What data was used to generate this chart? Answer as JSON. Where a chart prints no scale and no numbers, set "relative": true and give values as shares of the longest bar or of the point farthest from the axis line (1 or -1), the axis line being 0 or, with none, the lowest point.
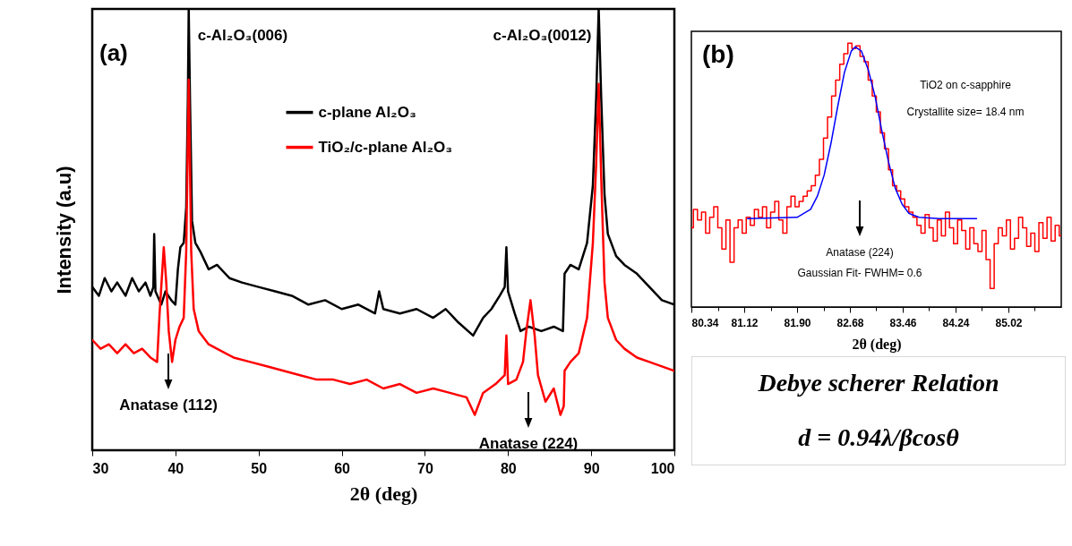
{
  "chart_data": [
    {
      "type": "line",
      "relative": true,
      "xlabel": "2θ (deg)",
      "ylabel": "Intensity (a.u)",
      "xlim": [
        30,
        100
      ],
      "xticks": [
        30,
        40,
        50,
        60,
        70,
        80,
        90,
        100
      ],
      "legend": "top",
      "line_style": "solid",
      "annotations": [
        "(a)",
        {
          "text": "c-Al₂O₃(006)",
          "x": 41.6,
          "y": 0.94
        },
        {
          "text": "c-Al₂O₃(0012)",
          "x": 90.9,
          "y": 0.94
        },
        "Anatase (112)",
        "Anatase (224)"
      ],
      "series": [
        {
          "name": "c-plane Al₂O₃",
          "color": "#000000",
          "x": [
            30,
            30.8,
            31.5,
            32.3,
            33,
            34,
            34.8,
            35.6,
            36.4,
            37,
            37.35,
            37.45,
            37.6,
            38.3,
            38.8,
            39.5,
            40,
            40.3,
            40.6,
            41,
            41.3,
            41.5,
            41.6,
            41.75,
            42,
            42.4,
            43,
            44,
            45,
            46.5,
            48,
            50,
            52,
            54,
            56,
            58,
            60,
            62,
            64,
            64.5,
            65,
            67,
            69,
            71,
            72.5,
            74,
            75.8,
            77,
            78,
            79,
            79.6,
            79.8,
            80,
            80.8,
            81.5,
            82.5,
            84,
            85.5,
            86.6,
            86.8,
            87.5,
            88.5,
            89.5,
            90.2,
            90.6,
            90.9,
            91.2,
            91.6,
            92,
            93,
            94,
            95.5,
            97,
            98.5,
            100
          ],
          "values": [
            0.37,
            0.35,
            0.39,
            0.36,
            0.38,
            0.35,
            0.39,
            0.36,
            0.38,
            0.35,
            0.37,
            0.49,
            0.36,
            0.33,
            0.36,
            0.34,
            0.33,
            0.41,
            0.46,
            0.47,
            0.55,
            0.8,
            1,
            0.8,
            0.52,
            0.47,
            0.45,
            0.41,
            0.42,
            0.39,
            0.38,
            0.37,
            0.36,
            0.35,
            0.33,
            0.34,
            0.32,
            0.33,
            0.31,
            0.36,
            0.32,
            0.31,
            0.32,
            0.3,
            0.32,
            0.29,
            0.26,
            0.3,
            0.32,
            0.35,
            0.37,
            0.46,
            0.36,
            0.31,
            0.27,
            0.28,
            0.27,
            0.28,
            0.27,
            0.4,
            0.42,
            0.41,
            0.47,
            0.6,
            0.8,
            1,
            0.8,
            0.58,
            0.49,
            0.44,
            0.42,
            0.4,
            0.37,
            0.34,
            0.33
          ]
        },
        {
          "name": "TiO₂/c-plane Al₂O₃",
          "color": "#ff0000",
          "x": [
            30,
            31,
            32,
            33,
            34,
            35,
            36,
            37,
            37.8,
            38.1,
            38.3,
            38.6,
            38.9,
            39.2,
            39.6,
            40,
            40.5,
            41,
            41.3,
            41.6,
            41.9,
            42.2,
            42.8,
            44,
            45,
            47,
            49,
            51,
            53,
            55,
            57,
            59,
            61,
            63,
            65,
            67,
            69,
            71,
            73,
            75,
            76,
            77,
            78.5,
            79.6,
            79.8,
            80,
            81,
            81.8,
            82.2,
            82.7,
            83.2,
            83.6,
            84.5,
            85.5,
            86.3,
            86.7,
            86.8,
            87.5,
            88.5,
            89.5,
            90.2,
            90.6,
            90.9,
            91.2,
            91.6,
            92,
            93,
            94,
            95.5,
            97,
            98.5,
            100
          ],
          "values": [
            0.25,
            0.23,
            0.24,
            0.22,
            0.24,
            0.22,
            0.23,
            0.21,
            0.2,
            0.31,
            0.37,
            0.46,
            0.38,
            0.27,
            0.2,
            0.25,
            0.28,
            0.3,
            0.45,
            0.84,
            0.45,
            0.32,
            0.27,
            0.24,
            0.23,
            0.21,
            0.2,
            0.19,
            0.18,
            0.17,
            0.16,
            0.16,
            0.15,
            0.16,
            0.14,
            0.15,
            0.13,
            0.14,
            0.13,
            0.12,
            0.08,
            0.13,
            0.15,
            0.17,
            0.26,
            0.15,
            0.16,
            0.2,
            0.27,
            0.34,
            0.26,
            0.17,
            0.11,
            0.14,
            0.08,
            0.1,
            0.18,
            0.2,
            0.22,
            0.3,
            0.47,
            0.65,
            0.83,
            0.62,
            0.38,
            0.3,
            0.25,
            0.23,
            0.21,
            0.2,
            0.19,
            0.18
          ]
        }
      ]
    },
    {
      "type": "line",
      "relative": true,
      "xlabel": "2θ (deg)",
      "xlim": [
        80.34,
        85.8
      ],
      "xticks": [
        80.34,
        {
          "value": 80.73,
          "label": null
        },
        81.12,
        {
          "value": 81.51,
          "label": null
        },
        {
          "value": 81.9,
          "label": "81.90"
        },
        {
          "value": 82.29,
          "label": null
        },
        82.68,
        {
          "value": 83.07,
          "label": null
        },
        83.46,
        {
          "value": 83.85,
          "label": null
        },
        84.24,
        {
          "value": 84.63,
          "label": null
        },
        85.02,
        {
          "value": 85.41,
          "label": null
        }
      ],
      "annotations": [
        "(b)",
        "TiO2 on c-sapphire",
        "Crystallite size= 18.4 nm",
        "Gaussian Fit- FWHM= 0.6",
        "Anatase (224)"
      ],
      "series": [
        {
          "type": "step",
          "color": "#ff0000",
          "x": [
            80.34,
            80.4,
            80.46,
            80.52,
            80.58,
            80.64,
            80.7,
            80.76,
            80.82,
            80.88,
            80.94,
            81,
            81.06,
            81.12,
            81.18,
            81.24,
            81.3,
            81.36,
            81.42,
            81.48,
            81.54,
            81.6,
            81.66,
            81.72,
            81.78,
            81.84,
            81.9,
            81.96,
            82.02,
            82.08,
            82.14,
            82.2,
            82.26,
            82.32,
            82.38,
            82.44,
            82.5,
            82.56,
            82.62,
            82.68,
            82.74,
            82.8,
            82.86,
            82.92,
            82.98,
            83.04,
            83.1,
            83.16,
            83.22,
            83.28,
            83.34,
            83.4,
            83.46,
            83.52,
            83.58,
            83.64,
            83.7,
            83.76,
            83.82,
            83.88,
            83.94,
            84,
            84.06,
            84.12,
            84.18,
            84.24,
            84.3,
            84.36,
            84.42,
            84.48,
            84.54,
            84.6,
            84.66,
            84.72,
            84.78,
            84.84,
            84.9,
            84.96,
            85.02,
            85.08,
            85.14,
            85.2,
            85.26,
            85.32,
            85.38,
            85.44,
            85.5,
            85.56,
            85.62,
            85.68,
            85.74,
            85.8
          ],
          "values": [
            0.3,
            0.37,
            0.33,
            0.36,
            0.28,
            0.34,
            0.38,
            0.3,
            0.22,
            0.33,
            0.17,
            0.3,
            0.33,
            0.28,
            0.34,
            0.31,
            0.37,
            0.34,
            0.38,
            0.3,
            0.36,
            0.4,
            0.33,
            0.28,
            0.38,
            0.42,
            0.38,
            0.4,
            0.42,
            0.44,
            0.46,
            0.5,
            0.56,
            0.64,
            0.72,
            0.8,
            0.86,
            0.92,
            0.96,
            1,
            0.98,
            0.99,
            0.95,
            0.93,
            0.86,
            0.8,
            0.74,
            0.66,
            0.6,
            0.52,
            0.46,
            0.44,
            0.41,
            0.38,
            0.36,
            0.34,
            0.31,
            0.28,
            0.35,
            0.3,
            0.25,
            0.33,
            0.27,
            0.36,
            0.3,
            0.24,
            0.33,
            0.29,
            0.22,
            0.3,
            0.24,
            0.21,
            0.29,
            0.18,
            0.07,
            0.24,
            0.3,
            0.27,
            0.33,
            0.22,
            0.26,
            0.34,
            0.3,
            0.23,
            0.28,
            0.21,
            0.32,
            0.26,
            0.34,
            0.25,
            0.31,
            0.27
          ]
        },
        {
          "type": "line",
          "color": "#0000ff",
          "x": [
            81.17,
            81.9,
            82.1,
            82.2,
            82.3,
            82.4,
            82.5,
            82.6,
            82.7,
            82.76,
            82.85,
            82.95,
            83.05,
            83.15,
            83.25,
            83.35,
            83.45,
            83.55,
            83.7,
            84,
            84.55
          ],
          "values": [
            0.335,
            0.34,
            0.37,
            0.42,
            0.5,
            0.62,
            0.76,
            0.89,
            0.97,
            0.986,
            0.97,
            0.9,
            0.8,
            0.67,
            0.55,
            0.45,
            0.39,
            0.355,
            0.34,
            0.335,
            0.335
          ]
        }
      ]
    },
    {
      "type": "other",
      "annotations": [
        "Debye scherer Relation",
        "d = 0.94λ/βcosθ"
      ]
    }
  ]
}
